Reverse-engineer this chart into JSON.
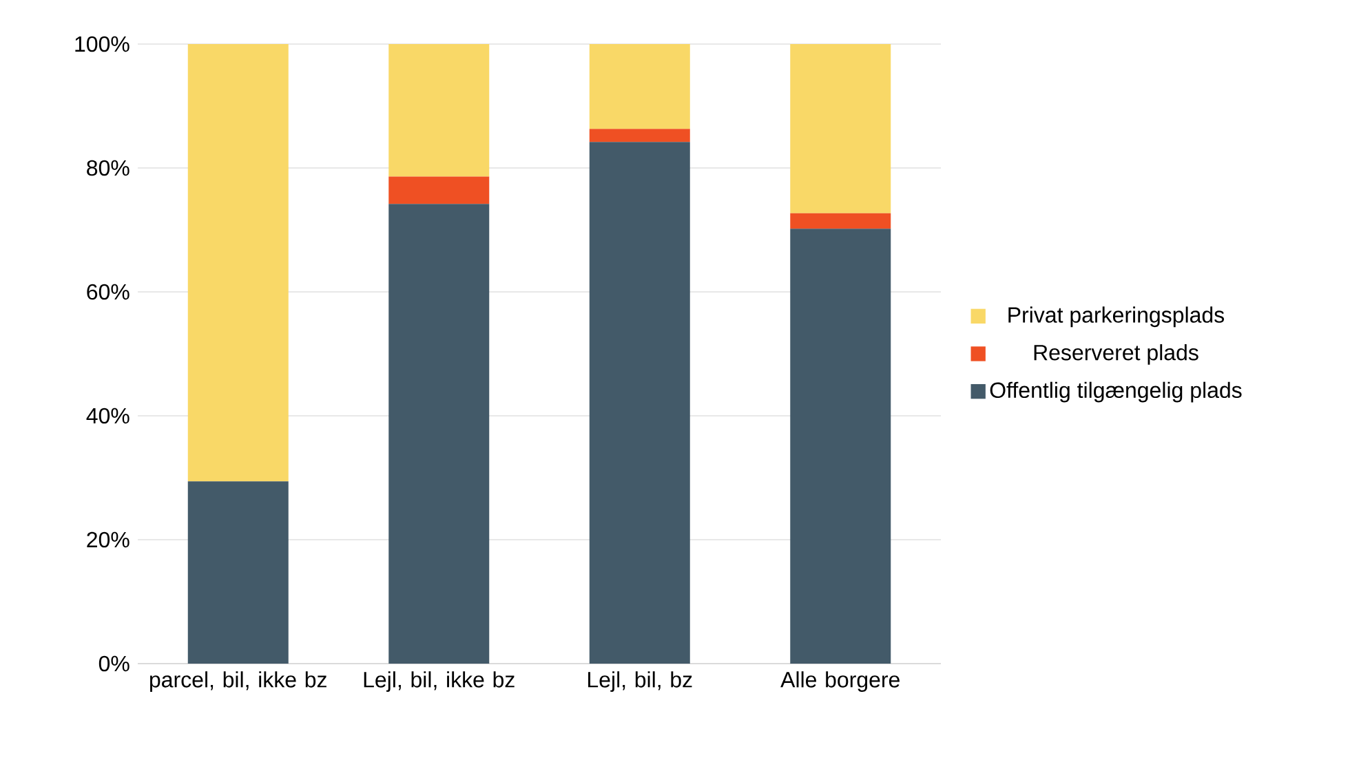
{
  "chart_data": {
    "type": "bar",
    "stacked": true,
    "categories": [
      "parcel, bil, ikke bz",
      "Lejl, bil, ikke bz",
      "Lejl, bil, bz",
      "Alle borgere"
    ],
    "series": [
      {
        "name": "Offentlig tilgængelig plads",
        "color": "#435a69",
        "values": [
          29.4,
          74.2,
          84.2,
          70.2
        ]
      },
      {
        "name": "Reserveret plads",
        "color": "#ef5023",
        "values": [
          0,
          4.4,
          2.1,
          2.5
        ]
      },
      {
        "name": "Privat parkeringsplads",
        "color": "#f9d867",
        "values": [
          70.6,
          21.4,
          13.7,
          27.3
        ]
      }
    ],
    "ylim": [
      0,
      100
    ],
    "yticks": [
      {
        "value": 0,
        "label": "0%"
      },
      {
        "value": 20,
        "label": "20%"
      },
      {
        "value": 40,
        "label": "40%"
      },
      {
        "value": 60,
        "label": "60%"
      },
      {
        "value": 80,
        "label": "80%"
      },
      {
        "value": 100,
        "label": "100%"
      }
    ],
    "grid": "y",
    "legend": "right"
  }
}
